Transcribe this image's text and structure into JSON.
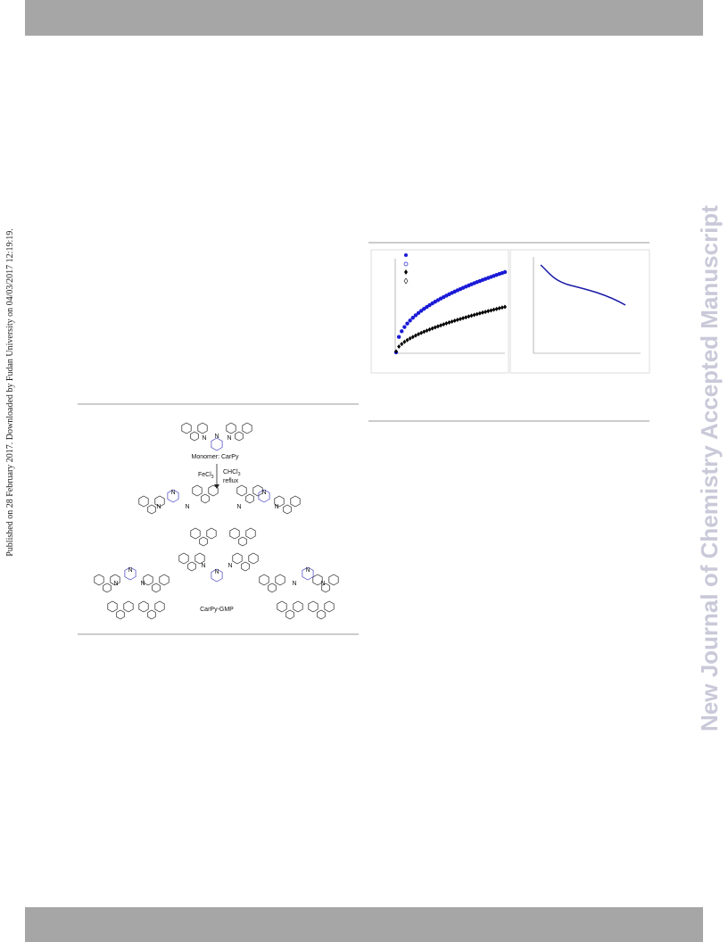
{
  "sidebar": {
    "published": "Published on 28 February 2017. Downloaded by Fudan University on 04/03/2017 12:19:19.",
    "watermark": "New Journal of Chemistry Accepted Manuscript"
  },
  "scheme": {
    "monomer": "Monomer: CarPy",
    "reagent": "FeCl",
    "reagent_sub": "3",
    "solvent": "CHCl",
    "solvent_sub": "3",
    "condition": "reflux",
    "polymer": "CarPy-GMP",
    "atom": "N"
  }
}
